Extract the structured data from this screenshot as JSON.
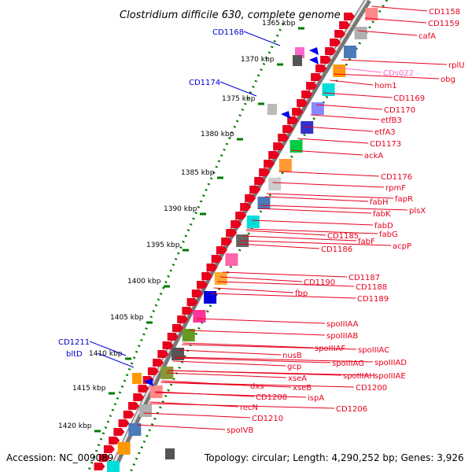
{
  "title": "Clostridium difficile 630, complete genome",
  "footer": {
    "accession": "Accession: NC_009089",
    "topology": "Topology: circular; Length: 4,290,252 bp; Genes: 3,926"
  },
  "colors": {
    "forward_gene": "#e8001c",
    "reverse_label": "#0000cc",
    "pseudo_label": "#ff66cc",
    "tick_mark": "#007a00",
    "backbone": "#999999"
  },
  "ruler": [
    "1365 kbp",
    "1370 kbp",
    "1375 kbp",
    "1380 kbp",
    "1385 kbp",
    "1390 kbp",
    "1395 kbp",
    "1400 kbp",
    "1405 kbp",
    "1410 kbp",
    "1415 kbp",
    "1420 kbp"
  ],
  "left_labels": [
    "CD1168",
    "CD1174",
    "CD1211",
    "bltD"
  ],
  "right_labels": [
    "CD1158",
    "CD1159",
    "cafA",
    "rplU",
    "obg",
    "CDs022",
    "hom1",
    "CD1169",
    "CD1170",
    "etfB3",
    "etfA3",
    "CD1173",
    "ackA",
    "CD1176",
    "rpmF",
    "fapR",
    "plsX",
    "fabH",
    "fabK",
    "fabD",
    "fabG",
    "acpP",
    "fabF",
    "CD1185",
    "CD1186",
    "CD1187",
    "CD1188",
    "CD1189",
    "CD1190",
    "fbp",
    "spoIIIAA",
    "spoIIIAB",
    "spoIIIAC",
    "spoIIIAD",
    "spoIIIAE",
    "spoIIIAF",
    "spoIIIAG",
    "spoIIIAH",
    "CD1200",
    "nusB",
    "gcp",
    "xseA",
    "xseB",
    "ispA",
    "CD1206",
    "dxs",
    "CD1208",
    "recN",
    "CD1210",
    "spoIVB"
  ]
}
